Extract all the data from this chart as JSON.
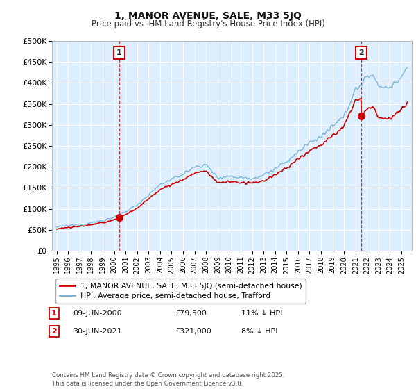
{
  "title": "1, MANOR AVENUE, SALE, M33 5JQ",
  "subtitle": "Price paid vs. HM Land Registry's House Price Index (HPI)",
  "ylim": [
    0,
    500000
  ],
  "yticks": [
    0,
    50000,
    100000,
    150000,
    200000,
    250000,
    300000,
    350000,
    400000,
    450000,
    500000
  ],
  "line1_color": "#cc0000",
  "line2_color": "#74afd3",
  "vline_color": "#cc0000",
  "plot_bg_color": "#ddeeff",
  "grid_color": "#ffffff",
  "ann1_x_year": 2000.44,
  "ann2_x_year": 2021.5,
  "price1": 79500,
  "price2": 321000,
  "ann1_date": "09-JUN-2000",
  "ann2_date": "30-JUN-2021",
  "ann1_pct": "11% ↓ HPI",
  "ann2_pct": "8% ↓ HPI",
  "legend_line1": "1, MANOR AVENUE, SALE, M33 5JQ (semi-detached house)",
  "legend_line2": "HPI: Average price, semi-detached house, Trafford",
  "footnote": "Contains HM Land Registry data © Crown copyright and database right 2025.\nThis data is licensed under the Open Government Licence v3.0.",
  "xmin": 1994.6,
  "xmax": 2025.9,
  "hpi_knots_x": [
    1995,
    1996,
    1997,
    1998,
    1999,
    2000,
    2001,
    2002,
    2003,
    2004,
    2005,
    2006,
    2007,
    2008,
    2009,
    2010,
    2011,
    2012,
    2013,
    2014,
    2015,
    2016,
    2017,
    2018,
    2019,
    2020,
    2021,
    2021.5,
    2022,
    2022.5,
    2023,
    2023.5,
    2024,
    2024.5,
    2025,
    2025.5
  ],
  "hpi_knots_y": [
    57000,
    60000,
    63000,
    67000,
    72000,
    80000,
    93000,
    110000,
    133000,
    158000,
    170000,
    183000,
    200000,
    205000,
    175000,
    178000,
    175000,
    173000,
    180000,
    195000,
    212000,
    235000,
    258000,
    272000,
    295000,
    320000,
    385000,
    395000,
    415000,
    420000,
    395000,
    388000,
    390000,
    400000,
    415000,
    430000
  ]
}
